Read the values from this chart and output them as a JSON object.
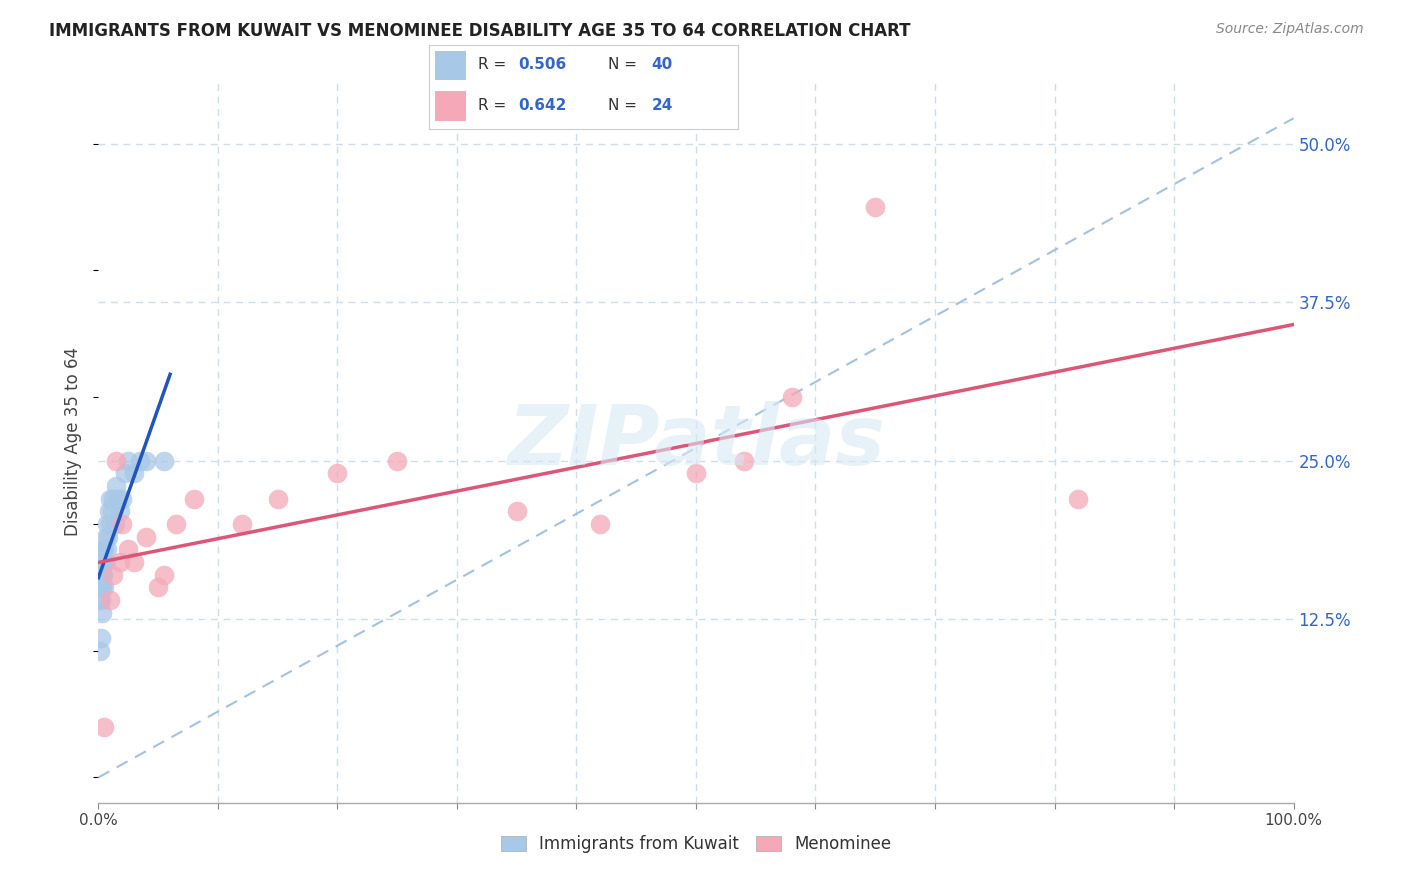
{
  "title": "IMMIGRANTS FROM KUWAIT VS MENOMINEE DISABILITY AGE 35 TO 64 CORRELATION CHART",
  "source": "Source: ZipAtlas.com",
  "ylabel": "Disability Age 35 to 64",
  "xlim": [
    0.0,
    1.0
  ],
  "ylim": [
    -0.02,
    0.55
  ],
  "ytick_vals": [
    0.0,
    0.125,
    0.25,
    0.375,
    0.5
  ],
  "ytick_labels": [
    "",
    "12.5%",
    "25.0%",
    "37.5%",
    "50.0%"
  ],
  "r_blue": 0.506,
  "n_blue": 40,
  "r_pink": 0.642,
  "n_pink": 24,
  "blue_color": "#a8c8e8",
  "pink_color": "#f4a8b8",
  "trendline_blue_color": "#2255bb",
  "trendline_pink_color": "#dd5577",
  "diagonal_color": "#99bbdd",
  "background_color": "#ffffff",
  "grid_color": "#ccddee",
  "label_color_blue": "#3366cc",
  "watermark_color": "#d8e8f4",
  "blue_scatter_x": [
    0.001,
    0.001,
    0.001,
    0.001,
    0.002,
    0.002,
    0.002,
    0.002,
    0.002,
    0.003,
    0.003,
    0.003,
    0.003,
    0.004,
    0.004,
    0.004,
    0.005,
    0.005,
    0.005,
    0.006,
    0.006,
    0.007,
    0.007,
    0.008,
    0.009,
    0.01,
    0.01,
    0.011,
    0.012,
    0.014,
    0.015,
    0.016,
    0.018,
    0.02,
    0.022,
    0.025,
    0.03,
    0.035,
    0.04,
    0.055
  ],
  "blue_scatter_y": [
    0.14,
    0.15,
    0.16,
    0.1,
    0.15,
    0.16,
    0.17,
    0.14,
    0.11,
    0.16,
    0.17,
    0.15,
    0.13,
    0.17,
    0.18,
    0.16,
    0.17,
    0.18,
    0.15,
    0.19,
    0.17,
    0.2,
    0.18,
    0.19,
    0.21,
    0.22,
    0.2,
    0.21,
    0.22,
    0.2,
    0.23,
    0.22,
    0.21,
    0.22,
    0.24,
    0.25,
    0.24,
    0.25,
    0.25,
    0.25
  ],
  "pink_scatter_x": [
    0.005,
    0.01,
    0.012,
    0.015,
    0.018,
    0.02,
    0.025,
    0.03,
    0.04,
    0.05,
    0.055,
    0.065,
    0.08,
    0.12,
    0.15,
    0.2,
    0.25,
    0.35,
    0.42,
    0.5,
    0.54,
    0.58,
    0.65,
    0.82
  ],
  "pink_scatter_y": [
    0.04,
    0.14,
    0.16,
    0.25,
    0.17,
    0.2,
    0.18,
    0.17,
    0.19,
    0.15,
    0.16,
    0.2,
    0.22,
    0.2,
    0.22,
    0.24,
    0.25,
    0.21,
    0.2,
    0.24,
    0.25,
    0.3,
    0.45,
    0.22
  ],
  "watermark": "ZIPatlas"
}
